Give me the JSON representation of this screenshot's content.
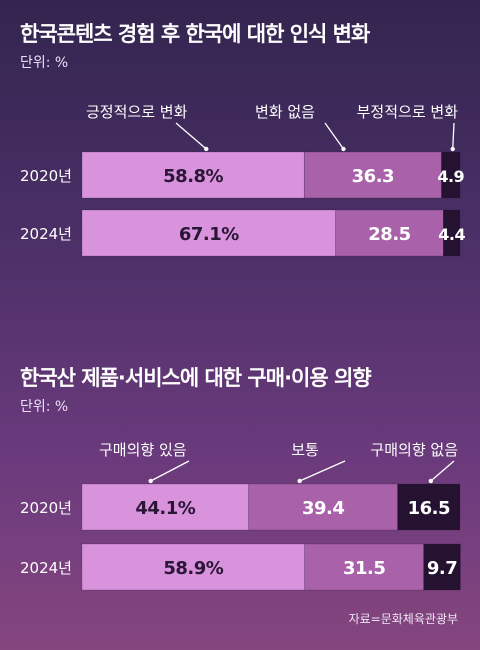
{
  "chart_data": [
    {
      "type": "bar",
      "stacked": true,
      "orientation": "horizontal",
      "title": "한국콘텐츠 경험 후 한국에 대한 인식 변화",
      "unit": "단위: %",
      "categories": [
        "2020년",
        "2024년"
      ],
      "series": [
        {
          "name": "긍정적으로 변화",
          "values": [
            58.8,
            67.1
          ],
          "labels": [
            "58.8%",
            "67.1%"
          ],
          "color": "#d993dd"
        },
        {
          "name": "변화 없음",
          "values": [
            36.3,
            28.5
          ],
          "labels": [
            "36.3",
            "28.5"
          ],
          "color": "#a961a9"
        },
        {
          "name": "부정적으로 변화",
          "values": [
            4.9,
            4.4
          ],
          "labels": [
            "4.9",
            "4.4"
          ],
          "color": "#241230"
        }
      ],
      "xlim": [
        0,
        100
      ]
    },
    {
      "type": "bar",
      "stacked": true,
      "orientation": "horizontal",
      "title": "한국산 제품·서비스에 대한 구매·이용 의향",
      "unit": "단위: %",
      "categories": [
        "2020년",
        "2024년"
      ],
      "series": [
        {
          "name": "구매의향 있음",
          "values": [
            44.1,
            58.9
          ],
          "labels": [
            "44.1%",
            "58.9%"
          ],
          "color": "#d993dd"
        },
        {
          "name": "보통",
          "values": [
            39.4,
            31.5
          ],
          "labels": [
            "39.4",
            "31.5"
          ],
          "color": "#a961a9"
        },
        {
          "name": "구매의향 없음",
          "values": [
            16.5,
            9.7
          ],
          "labels": [
            "16.5",
            "9.7"
          ],
          "color": "#241230"
        }
      ],
      "xlim": [
        0,
        100
      ]
    }
  ],
  "source": "자료=문화체육관광부"
}
